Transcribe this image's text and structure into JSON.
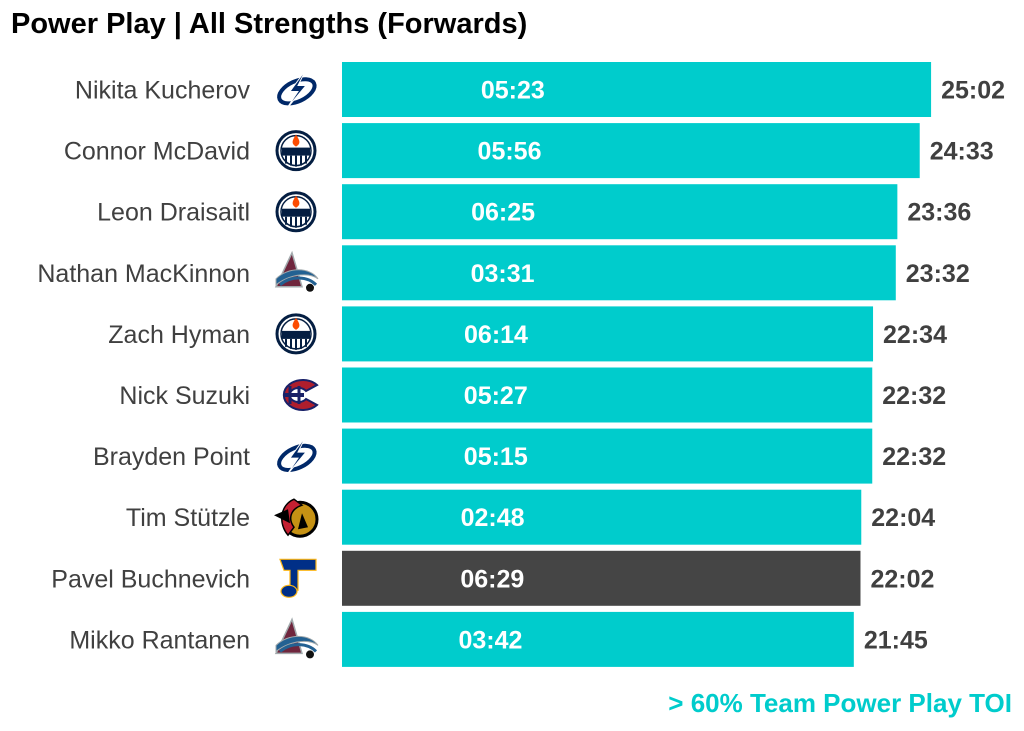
{
  "title": "Power Play | All Strengths (Forwards)",
  "footnote": "> 60% Team Power Play TOI",
  "colors": {
    "bar_default": "#00CCCC",
    "bar_highlight": "#454545",
    "footnote": "#00CCCC",
    "value_text": "#404040",
    "name_text": "#404040"
  },
  "chart_data": {
    "type": "bar",
    "orientation": "horizontal",
    "title": "Power Play | All Strengths (Forwards)",
    "xlabel": "",
    "ylabel": "",
    "grid": false,
    "legend": "none",
    "annotation": "> 60% Team Power Play TOI",
    "categories": [
      "Nikita Kucherov",
      "Connor McDavid",
      "Leon Draisaitl",
      "Nathan MacKinnon",
      "Zach Hyman",
      "Nick Suzuki",
      "Brayden Point",
      "Tim Stützle",
      "Pavel Buchnevich",
      "Mikko Rantanen"
    ],
    "teams": [
      "tampa-bay-lightning",
      "edmonton-oilers",
      "edmonton-oilers",
      "colorado-avalanche",
      "edmonton-oilers",
      "montreal-canadiens",
      "tampa-bay-lightning",
      "ottawa-senators",
      "st-louis-blues",
      "colorado-avalanche"
    ],
    "total_labels": [
      "25:02",
      "24:33",
      "23:36",
      "23:32",
      "22:34",
      "22:32",
      "22:32",
      "22:04",
      "22:02",
      "21:45"
    ],
    "total_seconds": [
      1502,
      1473,
      1416,
      1412,
      1354,
      1352,
      1352,
      1324,
      1322,
      1305
    ],
    "inner_labels": [
      "05:23",
      "05:56",
      "06:25",
      "03:31",
      "06:14",
      "05:27",
      "05:15",
      "02:48",
      "06:29",
      "03:42"
    ],
    "highlight": [
      false,
      false,
      false,
      false,
      false,
      false,
      false,
      false,
      true,
      false
    ]
  }
}
